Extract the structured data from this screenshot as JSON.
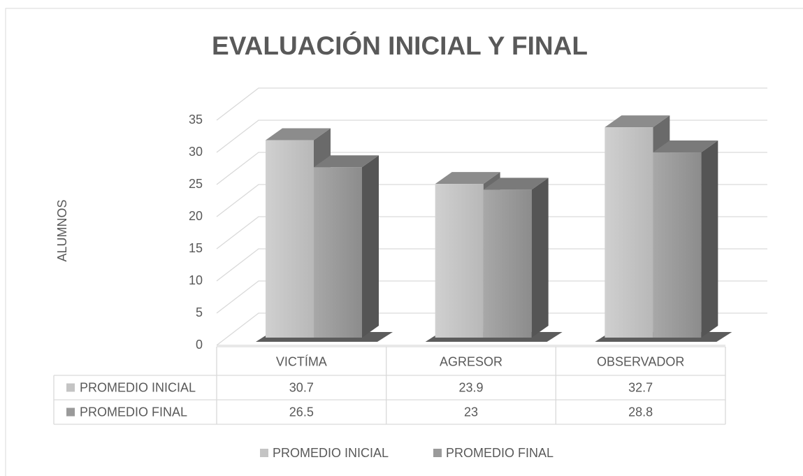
{
  "chart_data": {
    "type": "bar3d",
    "title": "EVALUACIÓN INICIAL Y FINAL",
    "y_label": "ALUMNOS",
    "categories": [
      "VICTÍMA",
      "AGRESOR",
      "OBSERVADOR"
    ],
    "series": [
      {
        "name": "PROMEDIO INICIAL",
        "color": "#c4c4c4",
        "values": [
          30.7,
          23.9,
          32.7
        ]
      },
      {
        "name": "PROMEDIO FINAL",
        "color": "#9a9a9a",
        "values": [
          26.5,
          23,
          28.8
        ]
      }
    ],
    "ylim": [
      0,
      35
    ],
    "yticks": [
      0,
      5,
      10,
      15,
      20,
      25,
      30,
      35
    ],
    "grid": true,
    "legend": "bottom"
  }
}
